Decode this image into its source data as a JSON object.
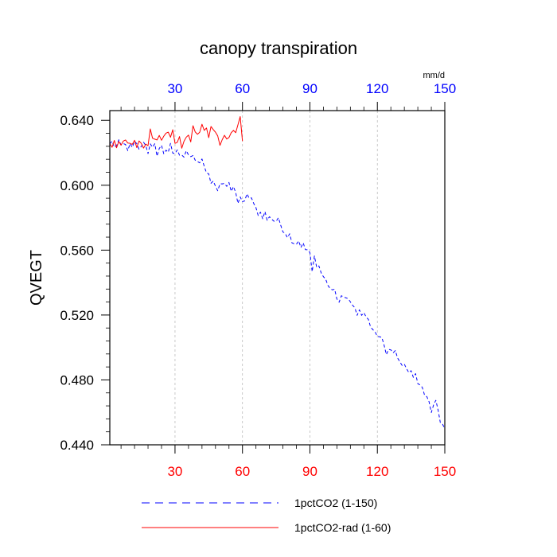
{
  "chart_data": {
    "type": "line",
    "title": "canopy transpiration",
    "units": "mm/d",
    "ylabel": "QVEGT",
    "xlim": [
      1,
      150
    ],
    "ylim": [
      0.44,
      0.646
    ],
    "x_ticks": [
      "30",
      "60",
      "90",
      "120",
      "150"
    ],
    "y_ticks": [
      "0.640",
      "0.600",
      "0.560",
      "0.520",
      "0.480",
      "0.440"
    ],
    "colors": {
      "bottom_ticks": "#ff0000",
      "top_ticks": "#0000ff"
    },
    "grid": "vertical dashed at 30, 60, 90, 120",
    "legend_position": "bottom",
    "series": [
      {
        "name": "1pctCO2 (1-150)",
        "color": "#0000ff",
        "dash": "dashed",
        "x": [
          1,
          2,
          3,
          4,
          5,
          6,
          7,
          8,
          9,
          10,
          11,
          12,
          13,
          14,
          15,
          16,
          17,
          18,
          19,
          20,
          21,
          22,
          23,
          24,
          25,
          26,
          27,
          28,
          29,
          30,
          31,
          32,
          33,
          34,
          35,
          36,
          37,
          38,
          39,
          40,
          41,
          42,
          43,
          44,
          45,
          46,
          47,
          48,
          49,
          50,
          51,
          52,
          53,
          54,
          55,
          56,
          57,
          58,
          59,
          60,
          61,
          62,
          63,
          64,
          65,
          66,
          67,
          68,
          69,
          70,
          71,
          72,
          73,
          74,
          75,
          76,
          77,
          78,
          79,
          80,
          81,
          82,
          83,
          84,
          85,
          86,
          87,
          88,
          89,
          90,
          91,
          92,
          93,
          94,
          95,
          96,
          97,
          98,
          99,
          100,
          101,
          102,
          103,
          104,
          105,
          106,
          107,
          108,
          109,
          110,
          111,
          112,
          113,
          114,
          115,
          116,
          117,
          118,
          119,
          120,
          121,
          122,
          123,
          124,
          125,
          126,
          127,
          128,
          129,
          130,
          131,
          132,
          133,
          134,
          135,
          136,
          137,
          138,
          139,
          140,
          141,
          142,
          143,
          144,
          145,
          146,
          147,
          148,
          149,
          150
        ],
        "values": [
          0.6255,
          0.6272,
          0.6234,
          0.6244,
          0.628,
          0.6248,
          0.6257,
          0.6251,
          0.6213,
          0.6257,
          0.6233,
          0.6271,
          0.6256,
          0.6222,
          0.6239,
          0.6265,
          0.6245,
          0.6195,
          0.6255,
          0.6234,
          0.6256,
          0.6179,
          0.6227,
          0.6246,
          0.6194,
          0.6216,
          0.6203,
          0.6258,
          0.6198,
          0.6195,
          0.6218,
          0.6185,
          0.6186,
          0.6173,
          0.6213,
          0.6187,
          0.6176,
          0.6183,
          0.6154,
          0.6146,
          0.6138,
          0.6162,
          0.6117,
          0.6076,
          0.607,
          0.6012,
          0.6026,
          0.5994,
          0.5966,
          0.6009,
          0.6008,
          0.6011,
          0.5993,
          0.6017,
          0.5962,
          0.5992,
          0.5955,
          0.5888,
          0.5928,
          0.5898,
          0.5904,
          0.5947,
          0.5919,
          0.5922,
          0.5888,
          0.5862,
          0.5813,
          0.5834,
          0.5793,
          0.5838,
          0.5784,
          0.5806,
          0.5791,
          0.5778,
          0.5778,
          0.58,
          0.5754,
          0.5712,
          0.5703,
          0.5677,
          0.5701,
          0.5645,
          0.5639,
          0.5636,
          0.5657,
          0.5616,
          0.5645,
          0.5603,
          0.5602,
          0.5585,
          0.5467,
          0.5564,
          0.5494,
          0.5503,
          0.546,
          0.5436,
          0.5422,
          0.5383,
          0.5363,
          0.5355,
          0.5359,
          0.5299,
          0.5279,
          0.5319,
          0.5311,
          0.5306,
          0.5301,
          0.5281,
          0.526,
          0.5245,
          0.5198,
          0.5232,
          0.5198,
          0.5214,
          0.5188,
          0.5173,
          0.5126,
          0.511,
          0.5096,
          0.5068,
          0.5066,
          0.5062,
          0.5014,
          0.4956,
          0.4988,
          0.4985,
          0.4967,
          0.4981,
          0.4935,
          0.4912,
          0.4889,
          0.4897,
          0.4869,
          0.4845,
          0.4857,
          0.4816,
          0.4839,
          0.4777,
          0.4769,
          0.4754,
          0.4706,
          0.4697,
          0.4665,
          0.4599,
          0.4646,
          0.4674,
          0.4616,
          0.4537,
          0.4527,
          0.45
        ]
      },
      {
        "name": "1pctCO2-rad (1-60)",
        "color": "#ff0000",
        "dash": "solid",
        "x": [
          1,
          2,
          3,
          4,
          5,
          6,
          7,
          8,
          9,
          10,
          11,
          12,
          13,
          14,
          15,
          16,
          17,
          18,
          19,
          20,
          21,
          22,
          23,
          24,
          25,
          26,
          27,
          28,
          29,
          30,
          31,
          32,
          33,
          34,
          35,
          36,
          37,
          38,
          39,
          40,
          41,
          42,
          43,
          44,
          45,
          46,
          47,
          48,
          49,
          50,
          51,
          52,
          53,
          54,
          55,
          56,
          57,
          58,
          59,
          60
        ],
        "values": [
          0.6256,
          0.6234,
          0.6276,
          0.6231,
          0.627,
          0.6247,
          0.6272,
          0.6279,
          0.626,
          0.6258,
          0.6252,
          0.6277,
          0.6232,
          0.6273,
          0.6258,
          0.6229,
          0.6253,
          0.6244,
          0.6347,
          0.629,
          0.6284,
          0.6279,
          0.6307,
          0.6277,
          0.6302,
          0.6321,
          0.6327,
          0.6296,
          0.6342,
          0.6258,
          0.6264,
          0.63,
          0.6228,
          0.6271,
          0.6296,
          0.6309,
          0.6267,
          0.6367,
          0.6328,
          0.6314,
          0.6327,
          0.6376,
          0.6338,
          0.6353,
          0.6293,
          0.6362,
          0.6343,
          0.6327,
          0.6304,
          0.6246,
          0.6281,
          0.6308,
          0.6285,
          0.6294,
          0.6324,
          0.6338,
          0.6324,
          0.6373,
          0.6423,
          0.6272
        ]
      }
    ]
  }
}
